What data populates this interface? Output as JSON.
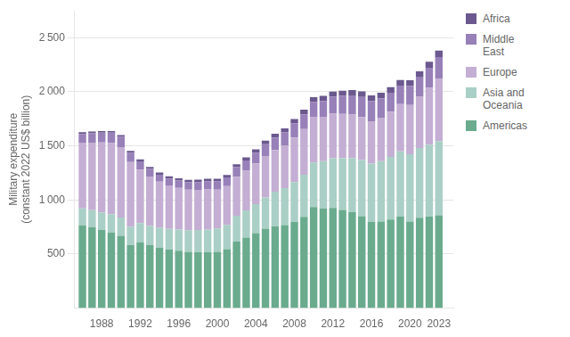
{
  "chart_data": {
    "type": "bar",
    "stacked": true,
    "x": [
      1986,
      1987,
      1988,
      1989,
      1990,
      1991,
      1992,
      1993,
      1994,
      1995,
      1996,
      1997,
      1998,
      1999,
      2000,
      2001,
      2002,
      2003,
      2004,
      2005,
      2006,
      2007,
      2008,
      2009,
      2010,
      2011,
      2012,
      2013,
      2014,
      2015,
      2016,
      2017,
      2018,
      2019,
      2020,
      2021,
      2022,
      2023
    ],
    "series": [
      {
        "name": "Americas",
        "color": "#6aab8e",
        "values": [
          766,
          748,
          722,
          700,
          668,
          581,
          608,
          582,
          560,
          542,
          530,
          520,
          518,
          516,
          520,
          545,
          615,
          653,
          694,
          734,
          758,
          768,
          797,
          844,
          935,
          920,
          926,
          908,
          888,
          849,
          798,
          800,
          818,
          847,
          800,
          835,
          846,
          858
        ]
      },
      {
        "name": "Asia and\nOceania",
        "color": "#aacfc6",
        "values": [
          155,
          158,
          162,
          168,
          170,
          172,
          178,
          180,
          185,
          190,
          196,
          200,
          205,
          210,
          216,
          225,
          238,
          250,
          268,
          290,
          318,
          342,
          368,
          390,
          412,
          438,
          460,
          480,
          500,
          520,
          538,
          558,
          580,
          602,
          622,
          645,
          665,
          686
        ]
      },
      {
        "name": "Europe",
        "color": "#c4aed3",
        "values": [
          608,
          624,
          648,
          658,
          650,
          598,
          495,
          455,
          424,
          402,
          386,
          376,
          370,
          372,
          360,
          358,
          362,
          368,
          376,
          382,
          386,
          392,
          412,
          422,
          418,
          412,
          412,
          408,
          402,
          398,
          392,
          402,
          418,
          438,
          456,
          478,
          526,
          576
        ]
      },
      {
        "name": "Middle\nEast",
        "color": "#9880b8",
        "values": [
          82,
          86,
          90,
          96,
          96,
          86,
          76,
          70,
          65,
          65,
          68,
          70,
          73,
          76,
          78,
          80,
          90,
          95,
          100,
          110,
          116,
          122,
          132,
          136,
          142,
          146,
          156,
          166,
          176,
          186,
          186,
          180,
          176,
          170,
          176,
          176,
          186,
          202
        ]
      },
      {
        "name": "Africa",
        "color": "#6a588e",
        "values": [
          16,
          16,
          16,
          16,
          17,
          17,
          18,
          18,
          19,
          19,
          20,
          20,
          21,
          22,
          23,
          24,
          26,
          28,
          30,
          32,
          34,
          37,
          40,
          42,
          44,
          46,
          47,
          48,
          50,
          51,
          52,
          52,
          52,
          53,
          54,
          55,
          56,
          60
        ]
      }
    ],
    "ylabel": "Military expenditure\n(constant 2022 US$ billion)",
    "xlim": [
      1985.2,
      2024.5
    ],
    "xticks": [
      1988,
      1992,
      1996,
      2000,
      2004,
      2008,
      2012,
      2016,
      2020,
      2023
    ],
    "ylim": [
      0,
      2750
    ],
    "yticks": [
      500,
      {
        "value": 1000,
        "label": "1 000"
      },
      {
        "value": 1500,
        "label": "1 500"
      },
      {
        "value": 2000,
        "label": "2 000"
      },
      {
        "value": 2500,
        "label": "2 500"
      }
    ],
    "grid": true,
    "legend": "right"
  }
}
